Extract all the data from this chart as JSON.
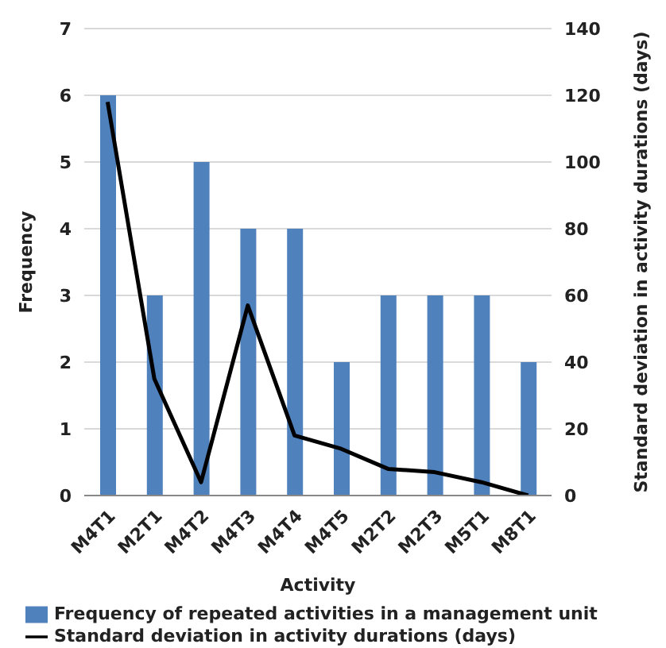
{
  "chart_data": {
    "type": "bar",
    "xlabel": "Activity",
    "ylabel": "Frequency",
    "y2label": "Standard deviation in activity durations (days)",
    "categories": [
      "M4T1",
      "M2T1",
      "M4T2",
      "M4T3",
      "M4T4",
      "M4T5",
      "M2T2",
      "M2T3",
      "M5T1",
      "M8T1"
    ],
    "series": [
      {
        "name": "Frequency of repeated activities in a management unit",
        "color": "#4f81bd",
        "values": [
          6,
          3,
          5,
          4,
          4,
          2,
          3,
          3,
          3,
          2
        ]
      },
      {
        "name": "Standard deviation in activity durations (days)",
        "type": "line",
        "axis": "y2",
        "color": "#000000",
        "values": [
          118,
          35,
          4,
          57,
          18,
          14,
          8,
          7,
          4,
          0
        ]
      }
    ],
    "ylim": [
      0,
      7
    ],
    "yticks": [
      0,
      1,
      2,
      3,
      4,
      5,
      6,
      7
    ],
    "y2lim": [
      0,
      140
    ],
    "y2ticks": [
      0,
      20,
      40,
      60,
      80,
      100,
      120,
      140
    ],
    "grid": "y",
    "legend": "bottom",
    "marker": "none",
    "line_style": "solid"
  }
}
